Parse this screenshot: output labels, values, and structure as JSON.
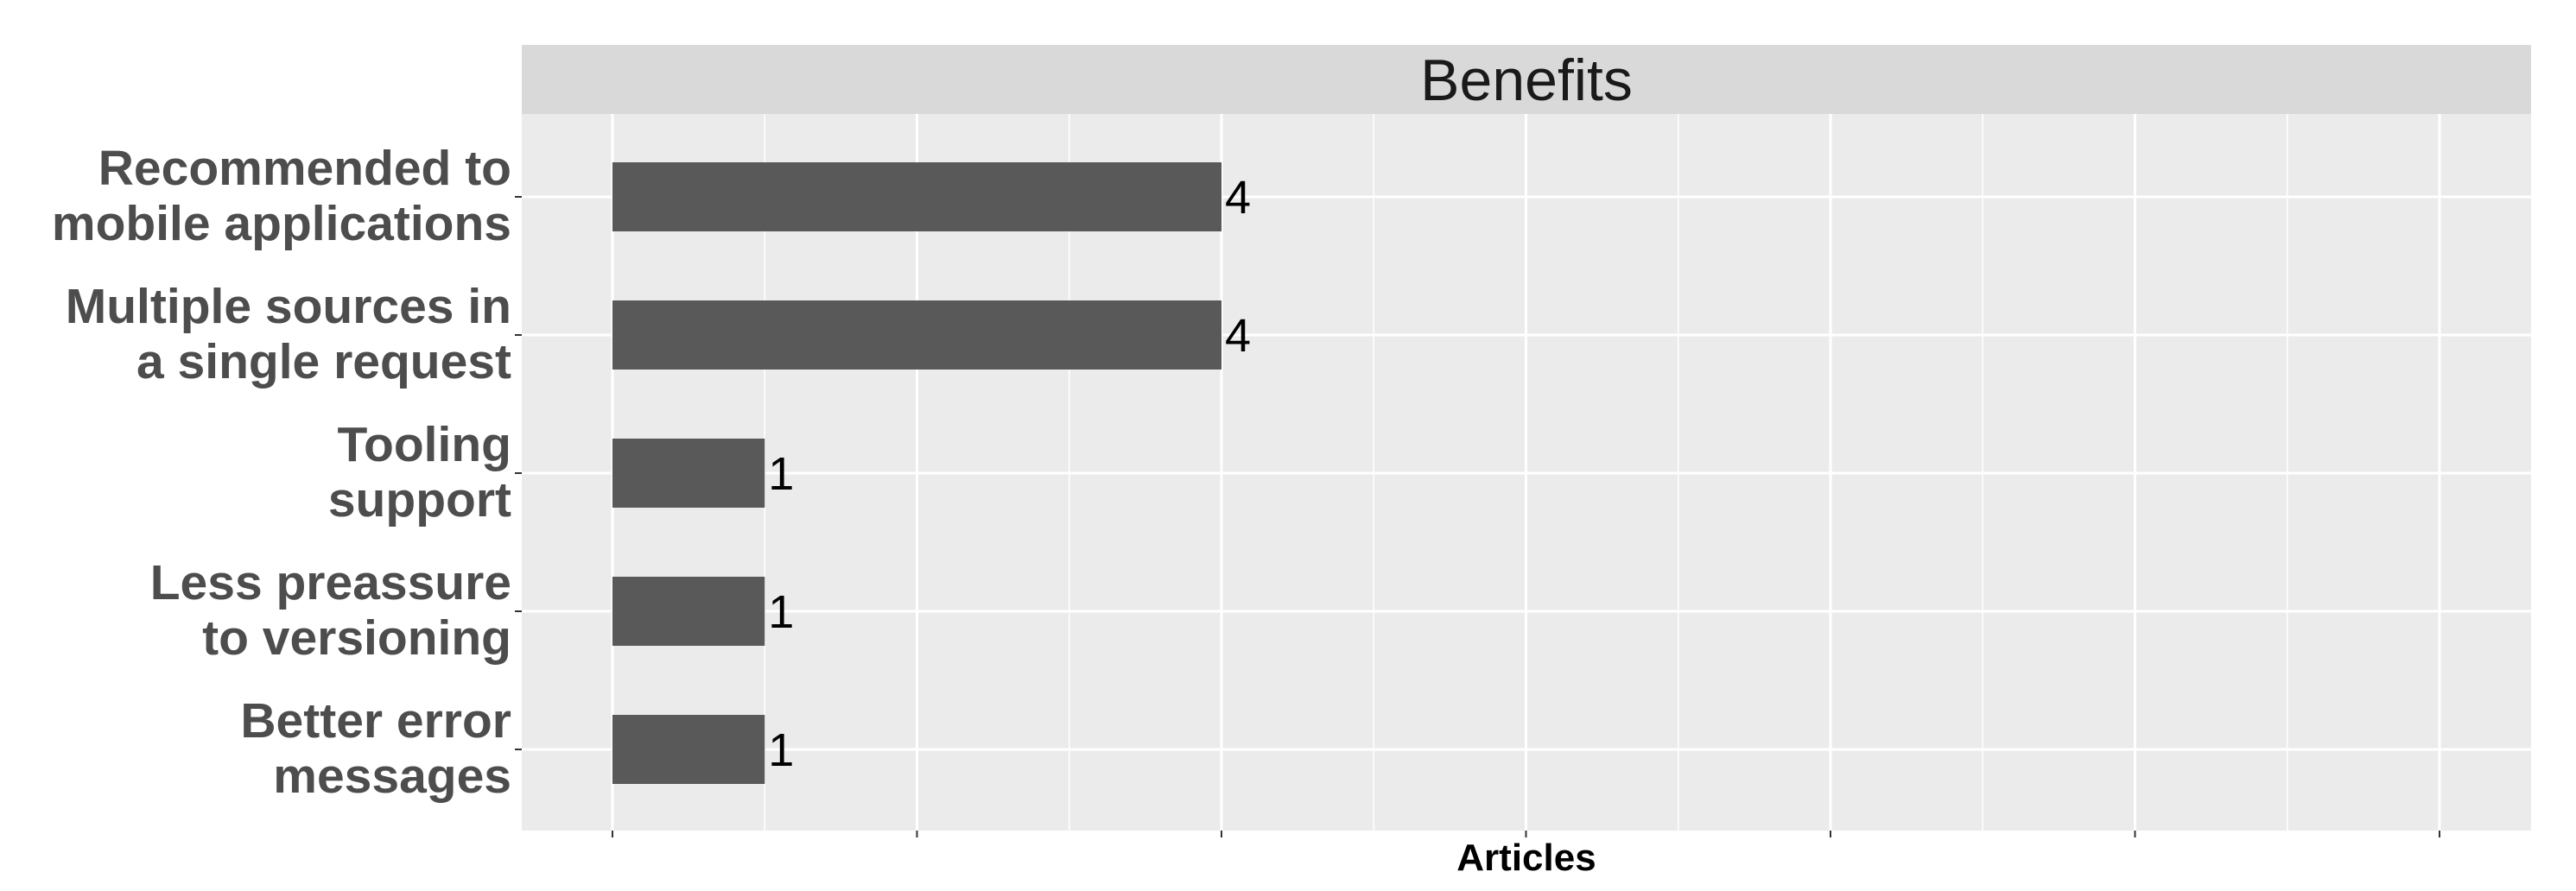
{
  "chart_data": {
    "type": "bar",
    "orientation": "horizontal",
    "title": "Benefits",
    "xlabel": "Articles",
    "ylabel": "",
    "categories": [
      [
        "Recommended to",
        "mobile applications"
      ],
      [
        "Multiple sources in",
        "a single request"
      ],
      [
        "Tooling",
        "support"
      ],
      [
        "Less preassure",
        "to versioning"
      ],
      [
        "Better error",
        "messages"
      ]
    ],
    "values": [
      4,
      4,
      1,
      1,
      1
    ],
    "data_labels": [
      "4",
      "4",
      "1",
      "1",
      "1"
    ],
    "xlim": [
      0,
      12
    ],
    "x_tick_labels_shown": false,
    "grid": true,
    "legend": "none",
    "colors": {
      "bar": "#595959",
      "panel": "#ebebeb",
      "strip": "#d9d9d9",
      "grid": "#ffffff"
    }
  }
}
